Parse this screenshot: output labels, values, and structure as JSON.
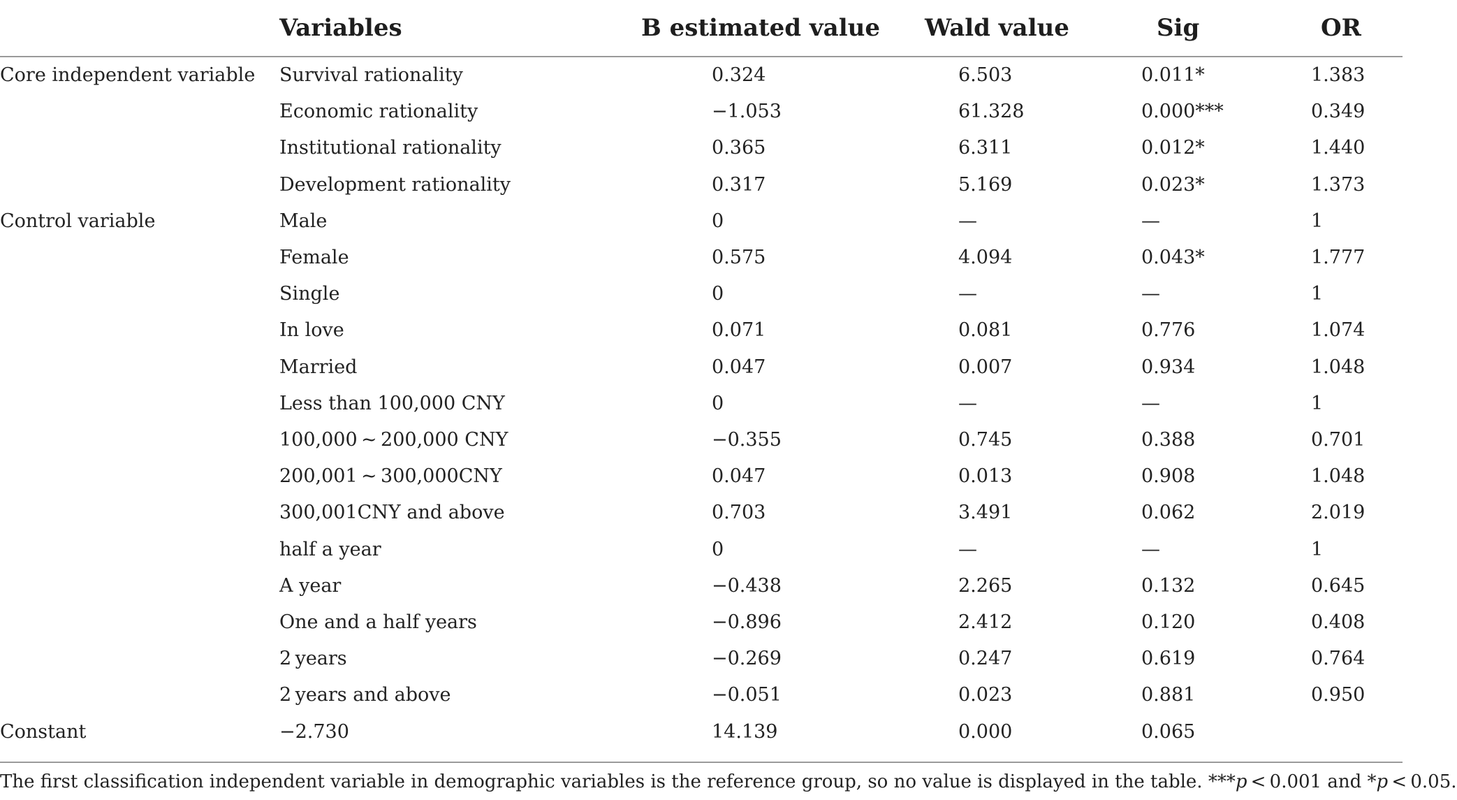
{
  "table": {
    "headers": {
      "group": "",
      "variables": "Variables",
      "b_value": "B estimated value",
      "wald": "Wald value",
      "sig": "Sig",
      "or": "OR"
    },
    "rows": [
      {
        "group": "Core independent variable",
        "variable": "Survival rationality",
        "b": "0.324",
        "wald": "6.503",
        "sig": "0.011*",
        "or": "1.383"
      },
      {
        "group": "",
        "variable": "Economic rationality",
        "b": "−1.053",
        "wald": "61.328",
        "sig": "0.000***",
        "or": "0.349"
      },
      {
        "group": "",
        "variable": "Institutional rationality",
        "b": "0.365",
        "wald": "6.311",
        "sig": "0.012*",
        "or": "1.440"
      },
      {
        "group": "",
        "variable": "Development rationality",
        "b": "0.317",
        "wald": "5.169",
        "sig": "0.023*",
        "or": "1.373"
      },
      {
        "group": "Control variable",
        "variable": "Male",
        "b": "0",
        "wald": "—",
        "sig": "—",
        "or": "1"
      },
      {
        "group": "",
        "variable": "Female",
        "b": "0.575",
        "wald": "4.094",
        "sig": "0.043*",
        "or": "1.777"
      },
      {
        "group": "",
        "variable": "Single",
        "b": "0",
        "wald": "—",
        "sig": "—",
        "or": "1"
      },
      {
        "group": "",
        "variable": "In love",
        "b": "0.071",
        "wald": "0.081",
        "sig": "0.776",
        "or": "1.074"
      },
      {
        "group": "",
        "variable": "Married",
        "b": "0.047",
        "wald": "0.007",
        "sig": "0.934",
        "or": "1.048"
      },
      {
        "group": "",
        "variable": "Less than 100,000 CNY",
        "b": "0",
        "wald": "—",
        "sig": "—",
        "or": "1"
      },
      {
        "group": "",
        "variable": "100,000 ~ 200,000 CNY",
        "b": "−0.355",
        "wald": "0.745",
        "sig": "0.388",
        "or": "0.701"
      },
      {
        "group": "",
        "variable": "200,001 ~ 300,000CNY",
        "b": "0.047",
        "wald": "0.013",
        "sig": "0.908",
        "or": "1.048"
      },
      {
        "group": "",
        "variable": "300,001CNY and above",
        "b": "0.703",
        "wald": "3.491",
        "sig": "0.062",
        "or": "2.019"
      },
      {
        "group": "",
        "variable": "half a year",
        "b": "0",
        "wald": "—",
        "sig": "—",
        "or": "1"
      },
      {
        "group": "",
        "variable": "A year",
        "b": "−0.438",
        "wald": "2.265",
        "sig": "0.132",
        "or": "0.645"
      },
      {
        "group": "",
        "variable": "One and a half years",
        "b": "−0.896",
        "wald": "2.412",
        "sig": "0.120",
        "or": "0.408"
      },
      {
        "group": "",
        "variable": "2 years",
        "b": "−0.269",
        "wald": "0.247",
        "sig": "0.619",
        "or": "0.764"
      },
      {
        "group": "",
        "variable": "2 years and above",
        "b": "−0.051",
        "wald": "0.023",
        "sig": "0.881",
        "or": "0.950"
      },
      {
        "group": "Constant",
        "variable": "−2.730",
        "b": "14.139",
        "wald": "0.000",
        "sig": "0.065",
        "or": ""
      }
    ]
  },
  "footnote": {
    "main": "The first classification independent variable in demographic variables is the reference group, so no value is displayed in the table. ***",
    "p1": "p",
    "mid": " < 0.001 and *",
    "p2": "p",
    "end": " < 0.05."
  }
}
